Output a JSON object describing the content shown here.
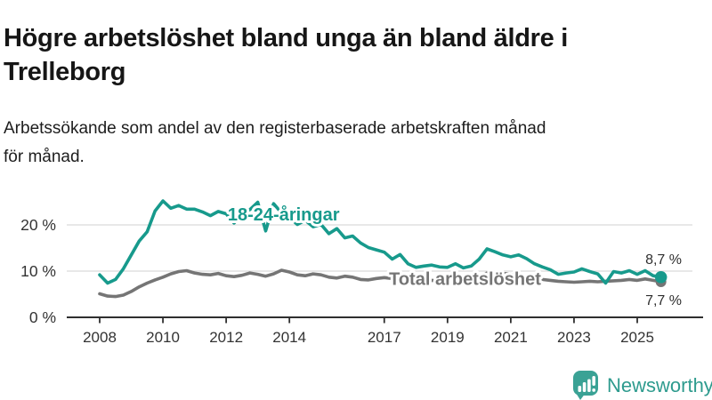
{
  "header": {
    "title_lines": [
      "Högre arbetslöshet bland unga än bland äldre i",
      "Trelleborg"
    ],
    "subtitle_lines": [
      "Arbetssökande som andel av den registerbaserade arbetskraften månad",
      "för månad."
    ]
  },
  "footer": {
    "brand": "Newsworthy",
    "brand_color": "#2E9B8E",
    "logo_color": "#3AA295"
  },
  "chart_data": {
    "type": "line",
    "title": "Högre arbetslöshet bland unga än bland äldre i Trelleborg",
    "subtitle": "Arbetssökande som andel av den registerbaserade arbetskraften månad för månad.",
    "unit": "%",
    "ylim": [
      0,
      27
    ],
    "grid": "horizontal",
    "y_ticks": [
      {
        "value": 0,
        "label": "0 %"
      },
      {
        "value": 10,
        "label": "10 %"
      },
      {
        "value": 20,
        "label": "20 %"
      }
    ],
    "x_ticks": [
      {
        "value": 2008,
        "label": "2008"
      },
      {
        "value": 2010,
        "label": "2010"
      },
      {
        "value": 2012,
        "label": "2012"
      },
      {
        "value": 2014,
        "label": "2014"
      },
      {
        "value": 2017,
        "label": "2017"
      },
      {
        "value": 2019,
        "label": "2019"
      },
      {
        "value": 2021,
        "label": "2021"
      },
      {
        "value": 2023,
        "label": "2023"
      },
      {
        "value": 2025,
        "label": "2025"
      }
    ],
    "x": [
      2008.0,
      2008.25,
      2008.5,
      2008.75,
      2009.0,
      2009.25,
      2009.5,
      2009.75,
      2010.0,
      2010.25,
      2010.5,
      2010.75,
      2011.0,
      2011.25,
      2011.5,
      2011.75,
      2012.0,
      2012.25,
      2012.5,
      2012.75,
      2013.0,
      2013.25,
      2013.5,
      2013.75,
      2014.0,
      2014.25,
      2014.5,
      2014.75,
      2015.0,
      2015.25,
      2015.5,
      2015.75,
      2016.0,
      2016.25,
      2016.5,
      2016.75,
      2017.0,
      2017.25,
      2017.5,
      2017.75,
      2018.0,
      2018.25,
      2018.5,
      2018.75,
      2019.0,
      2019.25,
      2019.5,
      2019.75,
      2020.0,
      2020.25,
      2020.5,
      2020.75,
      2021.0,
      2021.25,
      2021.5,
      2021.75,
      2022.0,
      2022.25,
      2022.5,
      2022.75,
      2023.0,
      2023.25,
      2023.5,
      2023.75,
      2024.0,
      2024.25,
      2024.5,
      2024.75,
      2025.0,
      2025.25,
      2025.5,
      2025.75
    ],
    "series": [
      {
        "name": "18-24-åringar",
        "color": "#179A8C",
        "end_label": "8,7 %",
        "end_value": 8.7,
        "label_x": 2012.05,
        "label_y": 21.0,
        "values": [
          9.2,
          7.4,
          8.2,
          10.5,
          13.5,
          16.5,
          18.5,
          23.0,
          25.2,
          23.6,
          24.2,
          23.4,
          23.4,
          22.8,
          22.0,
          22.9,
          22.4,
          20.4,
          22.4,
          23.3,
          24.9,
          18.7,
          24.6,
          22.6,
          21.6,
          20.1,
          21.0,
          19.6,
          20.1,
          18.1,
          19.2,
          17.2,
          17.6,
          16.1,
          15.1,
          14.6,
          14.1,
          12.6,
          13.6,
          11.6,
          10.8,
          11.1,
          11.3,
          10.9,
          10.8,
          11.6,
          10.7,
          11.1,
          12.6,
          14.8,
          14.2,
          13.5,
          13.1,
          13.5,
          12.7,
          11.6,
          10.9,
          10.3,
          9.3,
          9.6,
          9.8,
          10.5,
          9.9,
          9.4,
          7.4,
          9.9,
          9.6,
          10.1,
          9.3,
          10.1,
          9.0,
          8.7
        ]
      },
      {
        "name": "Total arbetslöshet",
        "color": "#757575",
        "end_label": "7,7 %",
        "end_value": 7.7,
        "label_x": 2017.15,
        "label_y": 7.0,
        "values": [
          5.1,
          4.6,
          4.5,
          4.8,
          5.6,
          6.6,
          7.4,
          8.1,
          8.7,
          9.4,
          9.9,
          10.1,
          9.6,
          9.3,
          9.2,
          9.5,
          9.0,
          8.8,
          9.1,
          9.6,
          9.3,
          8.9,
          9.4,
          10.2,
          9.8,
          9.2,
          9.0,
          9.4,
          9.2,
          8.7,
          8.5,
          8.9,
          8.7,
          8.2,
          8.1,
          8.4,
          8.6,
          8.4,
          8.3,
          8.2,
          8.0,
          7.9,
          8.0,
          7.9,
          8.0,
          8.1,
          8.0,
          8.2,
          8.6,
          9.6,
          9.8,
          9.5,
          9.3,
          9.0,
          8.7,
          8.4,
          8.2,
          8.0,
          7.8,
          7.7,
          7.6,
          7.7,
          7.8,
          7.7,
          7.8,
          7.9,
          8.0,
          8.2,
          8.0,
          8.3,
          8.0,
          7.7
        ]
      }
    ],
    "colors": {
      "grid": "#dadada",
      "axis": "#2f2f2f",
      "tick_label": "#333333",
      "end_label": "#2e2e2e"
    }
  }
}
